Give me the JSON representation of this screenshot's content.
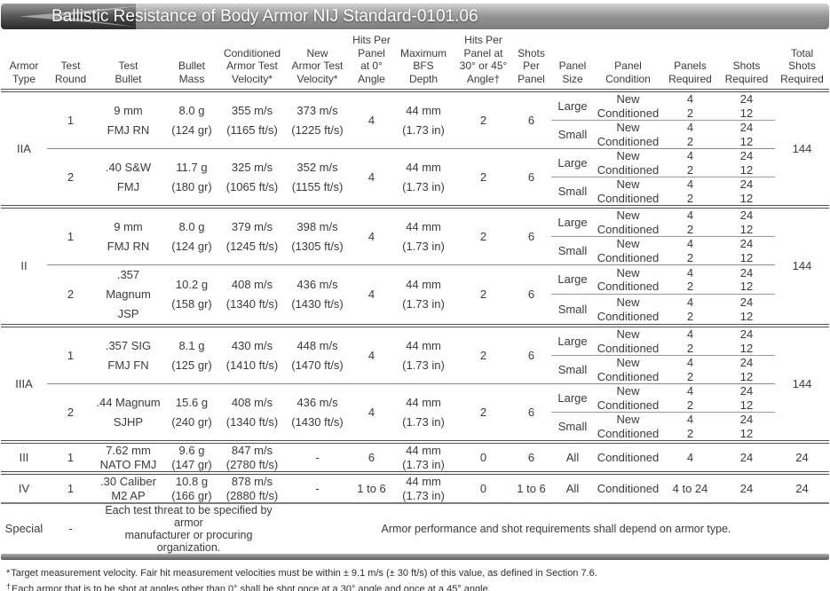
{
  "title": "Ballistic Resistance of Body Armor NIJ Standard-0101.06",
  "colors": {
    "banner_light": "#d4d4d4",
    "banner_mid": "#8f8f8f",
    "banner_dark": "#2a2a2a",
    "text": "#3b3b3b",
    "thin_rule": "#9b9b9b",
    "heavy_rule": "#4f4f4f"
  },
  "columns": [
    {
      "id": "armor-type",
      "label": "Armor\nType"
    },
    {
      "id": "test-round",
      "label": "Test\nRound"
    },
    {
      "id": "test-bullet",
      "label": "Test\nBullet"
    },
    {
      "id": "bullet-mass",
      "label": "Bullet\nMass"
    },
    {
      "id": "conditioned-velocity",
      "label": "Conditioned\nArmor Test\nVelocity*"
    },
    {
      "id": "new-velocity",
      "label": "New\nArmor Test\nVelocity*"
    },
    {
      "id": "hits-0",
      "label": "Hits Per\nPanel\nat 0°\nAngle"
    },
    {
      "id": "max-bfs",
      "label": "Maximum\nBFS\nDepth"
    },
    {
      "id": "hits-30-45",
      "label": "Hits Per\nPanel at\n30° or 45°\nAngle†"
    },
    {
      "id": "shots-per-panel",
      "label": "Shots\nPer\nPanel"
    },
    {
      "id": "panel-size",
      "label": "Panel\nSize"
    },
    {
      "id": "panel-condition",
      "label": "Panel\nCondition"
    },
    {
      "id": "panels-required",
      "label": "Panels\nRequired"
    },
    {
      "id": "shots-required",
      "label": "Shots\nRequired"
    },
    {
      "id": "total-shots",
      "label": "Total\nShots\nRequired"
    }
  ],
  "armor_blocks": [
    {
      "armor_type": "IIA",
      "total_shots": "144",
      "rounds": [
        {
          "round": "1",
          "bullet": [
            "9 mm",
            "FMJ RN"
          ],
          "mass": [
            "8.0 g",
            "(124 gr)"
          ],
          "conditioned_velocity": [
            "355 m/s",
            "(1165 ft/s)"
          ],
          "new_velocity": [
            "373 m/s",
            "(1225 ft/s)"
          ],
          "hits_0": "4",
          "bfs": [
            "44 mm",
            "(1.73 in)"
          ],
          "hits_30_45": "2",
          "shots_per_panel": "6",
          "panels": [
            {
              "size": "Large",
              "conditions": [
                "New",
                "Conditioned"
              ],
              "panels_required": [
                "4",
                "2"
              ],
              "shots_required": [
                "24",
                "12"
              ]
            },
            {
              "size": "Small",
              "conditions": [
                "New",
                "Conditioned"
              ],
              "panels_required": [
                "4",
                "2"
              ],
              "shots_required": [
                "24",
                "12"
              ]
            }
          ]
        },
        {
          "round": "2",
          "bullet": [
            ".40 S&W",
            "FMJ"
          ],
          "mass": [
            "11.7 g",
            "(180 gr)"
          ],
          "conditioned_velocity": [
            "325 m/s",
            "(1065 ft/s)"
          ],
          "new_velocity": [
            "352 m/s",
            "(1155 ft/s)"
          ],
          "hits_0": "4",
          "bfs": [
            "44 mm",
            "(1.73 in)"
          ],
          "hits_30_45": "2",
          "shots_per_panel": "6",
          "panels": [
            {
              "size": "Large",
              "conditions": [
                "New",
                "Conditioned"
              ],
              "panels_required": [
                "4",
                "2"
              ],
              "shots_required": [
                "24",
                "12"
              ]
            },
            {
              "size": "Small",
              "conditions": [
                "New",
                "Conditioned"
              ],
              "panels_required": [
                "4",
                "2"
              ],
              "shots_required": [
                "24",
                "12"
              ]
            }
          ]
        }
      ]
    },
    {
      "armor_type": "II",
      "total_shots": "144",
      "rounds": [
        {
          "round": "1",
          "bullet": [
            "9 mm",
            "FMJ RN"
          ],
          "mass": [
            "8.0 g",
            "(124 gr)"
          ],
          "conditioned_velocity": [
            "379 m/s",
            "(1245 ft/s)"
          ],
          "new_velocity": [
            "398 m/s",
            "(1305 ft/s)"
          ],
          "hits_0": "4",
          "bfs": [
            "44 mm",
            "(1.73 in)"
          ],
          "hits_30_45": "2",
          "shots_per_panel": "6",
          "panels": [
            {
              "size": "Large",
              "conditions": [
                "New",
                "Conditioned"
              ],
              "panels_required": [
                "4",
                "2"
              ],
              "shots_required": [
                "24",
                "12"
              ]
            },
            {
              "size": "Small",
              "conditions": [
                "New",
                "Conditioned"
              ],
              "panels_required": [
                "4",
                "2"
              ],
              "shots_required": [
                "24",
                "12"
              ]
            }
          ]
        },
        {
          "round": "2",
          "bullet": [
            ".357 Magnum",
            "JSP"
          ],
          "mass": [
            "10.2 g",
            "(158 gr)"
          ],
          "conditioned_velocity": [
            "408 m/s",
            "(1340 ft/s)"
          ],
          "new_velocity": [
            "436 m/s",
            "(1430 ft/s)"
          ],
          "hits_0": "4",
          "bfs": [
            "44 mm",
            "(1.73 in)"
          ],
          "hits_30_45": "2",
          "shots_per_panel": "6",
          "panels": [
            {
              "size": "Large",
              "conditions": [
                "New",
                "Conditioned"
              ],
              "panels_required": [
                "4",
                "2"
              ],
              "shots_required": [
                "24",
                "12"
              ]
            },
            {
              "size": "Small",
              "conditions": [
                "New",
                "Conditioned"
              ],
              "panels_required": [
                "4",
                "2"
              ],
              "shots_required": [
                "24",
                "12"
              ]
            }
          ]
        }
      ]
    },
    {
      "armor_type": "IIIA",
      "total_shots": "144",
      "rounds": [
        {
          "round": "1",
          "bullet": [
            ".357 SIG",
            "FMJ FN"
          ],
          "mass": [
            "8.1 g",
            "(125 gr)"
          ],
          "conditioned_velocity": [
            "430 m/s",
            "(1410 ft/s)"
          ],
          "new_velocity": [
            "448 m/s",
            "(1470 ft/s)"
          ],
          "hits_0": "4",
          "bfs": [
            "44 mm",
            "(1.73 in)"
          ],
          "hits_30_45": "2",
          "shots_per_panel": "6",
          "panels": [
            {
              "size": "Large",
              "conditions": [
                "New",
                "Conditioned"
              ],
              "panels_required": [
                "4",
                "2"
              ],
              "shots_required": [
                "24",
                "12"
              ]
            },
            {
              "size": "Small",
              "conditions": [
                "New",
                "Conditioned"
              ],
              "panels_required": [
                "4",
                "2"
              ],
              "shots_required": [
                "24",
                "12"
              ]
            }
          ]
        },
        {
          "round": "2",
          "bullet": [
            ".44 Magnum",
            "SJHP"
          ],
          "mass": [
            "15.6 g",
            "(240 gr)"
          ],
          "conditioned_velocity": [
            "408 m/s",
            "(1340 ft/s)"
          ],
          "new_velocity": [
            "436 m/s",
            "(1430 ft/s)"
          ],
          "hits_0": "4",
          "bfs": [
            "44 mm",
            "(1.73 in)"
          ],
          "hits_30_45": "2",
          "shots_per_panel": "6",
          "panels": [
            {
              "size": "Large",
              "conditions": [
                "New",
                "Conditioned"
              ],
              "panels_required": [
                "4",
                "2"
              ],
              "shots_required": [
                "24",
                "12"
              ]
            },
            {
              "size": "Small",
              "conditions": [
                "New",
                "Conditioned"
              ],
              "panels_required": [
                "4",
                "2"
              ],
              "shots_required": [
                "24",
                "12"
              ]
            }
          ]
        }
      ]
    }
  ],
  "single_rows": [
    {
      "armor_type": "III",
      "round": "1",
      "bullet": [
        "7.62 mm",
        "NATO FMJ"
      ],
      "mass": [
        "9.6 g",
        "(147 gr)"
      ],
      "conditioned_velocity": [
        "847 m/s",
        "(2780 ft/s)"
      ],
      "new_velocity": [
        "-"
      ],
      "hits_0": "6",
      "bfs": [
        "44 mm",
        "(1.73 in)"
      ],
      "hits_30_45": "0",
      "shots_per_panel": "6",
      "panel_size": "All",
      "panel_condition": "Conditioned",
      "panels_required": "4",
      "shots_required": "24",
      "total_shots": "24"
    },
    {
      "armor_type": "IV",
      "round": "1",
      "bullet": [
        ".30 Caliber",
        "M2 AP"
      ],
      "mass": [
        "10.8 g",
        "(166 gr)"
      ],
      "conditioned_velocity": [
        "878 m/s",
        "(2880 ft/s)"
      ],
      "new_velocity": [
        "-"
      ],
      "hits_0": "1 to 6",
      "bfs": [
        "44 mm",
        "(1.73 in)"
      ],
      "hits_30_45": "0",
      "shots_per_panel": "1 to 6",
      "panel_size": "All",
      "panel_condition": "Conditioned",
      "panels_required": "4 to 24",
      "shots_required": "24",
      "total_shots": "24"
    }
  ],
  "special_row": {
    "armor_type": "Special",
    "round": "-",
    "threat": [
      "Each test threat to be specified by armor",
      "manufacturer or procuring organization."
    ],
    "note": "Armor performance and shot requirements shall depend on armor type."
  },
  "footnotes": [
    {
      "marker": "*",
      "text": "Target measurement velocity. Fair hit measurement velocities must be within ± 9.1 m/s (± 30 ft/s) of this value, as defined in Section 7.6."
    },
    {
      "marker": "†",
      "text": "Each armor that is to be shot at angles other than 0° shall be shot once at a 30° angle and once at a 45° angle."
    }
  ]
}
